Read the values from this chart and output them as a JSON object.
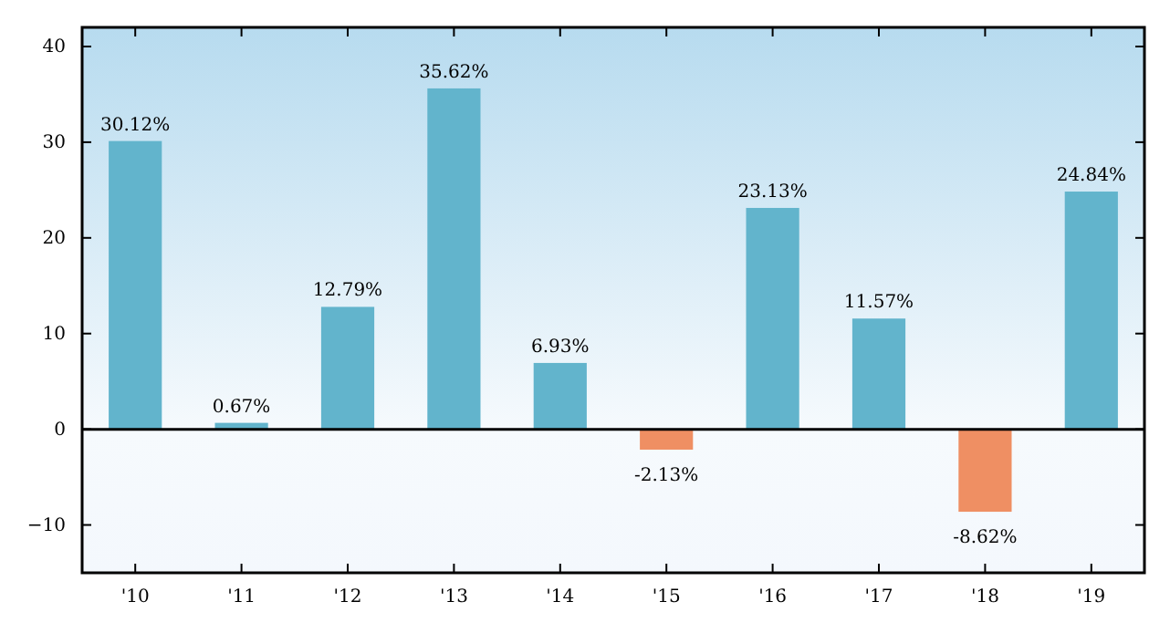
{
  "chart_data": {
    "type": "bar",
    "categories": [
      "'10",
      "'11",
      "'12",
      "'13",
      "'14",
      "'15",
      "'16",
      "'17",
      "'18",
      "'19"
    ],
    "values": [
      30.12,
      0.67,
      12.79,
      35.62,
      6.93,
      -2.13,
      23.13,
      11.57,
      -8.62,
      24.84
    ],
    "value_labels": [
      "30.12%",
      "0.67%",
      "12.79%",
      "35.62%",
      "6.93%",
      "-2.13%",
      "23.13%",
      "11.57%",
      "-8.62%",
      "24.84%"
    ],
    "colors": [
      "#62b4cc",
      "#62b4cc",
      "#62b4cc",
      "#62b4cc",
      "#62b4cc",
      "#ef8f63",
      "#62b4cc",
      "#62b4cc",
      "#ef8f63",
      "#62b4cc"
    ],
    "ylim": [
      -15,
      42
    ],
    "yticks": [
      {
        "value": -10,
        "label": "−10"
      },
      0,
      10,
      20,
      30,
      40
    ]
  }
}
